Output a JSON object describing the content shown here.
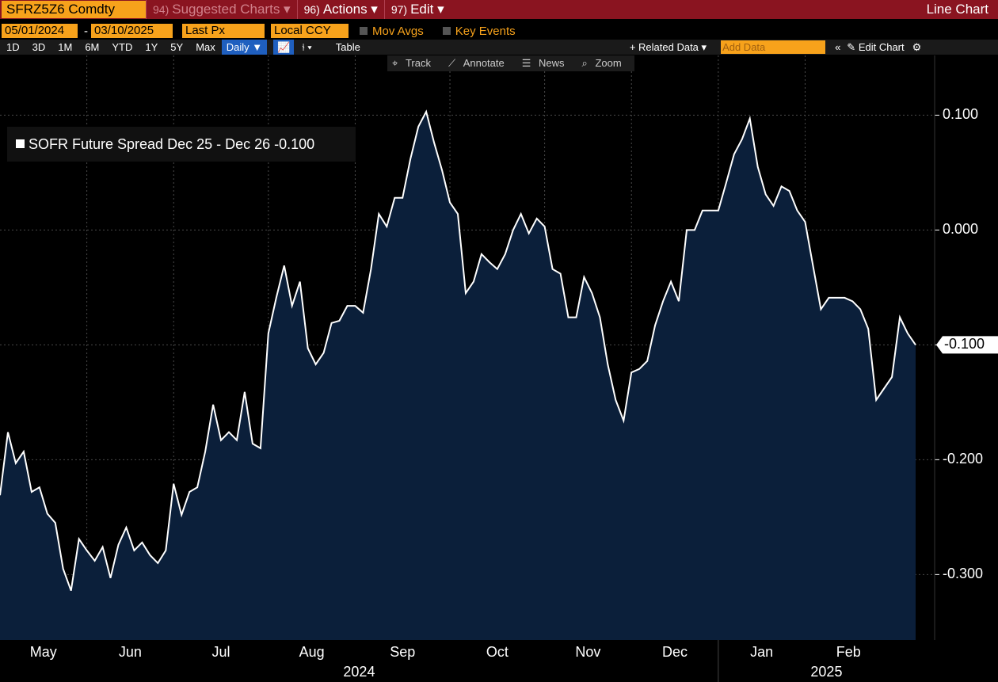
{
  "toolbar": {
    "ticker": "SFRZ5Z6 Comdty",
    "menus": [
      {
        "key": "94)",
        "label": "Suggested Charts"
      },
      {
        "key": "96)",
        "label": "Actions"
      },
      {
        "key": "97)",
        "label": "Edit"
      }
    ],
    "chart_name": "Line Chart"
  },
  "settings_bar": {
    "start": "05/01/2024",
    "separator": "-",
    "end": "03/10/2025",
    "field": "Last Px",
    "currency": "Local CCY",
    "mov_avgs": "Mov Avgs",
    "key_events": "Key Events"
  },
  "range_bar": {
    "ranges": [
      "1D",
      "3D",
      "1M",
      "6M",
      "YTD",
      "1Y",
      "5Y",
      "Max"
    ],
    "frequency": "Daily",
    "table": "Table",
    "related": "Related Data",
    "add_data": "Add Data",
    "edit_chart": "Edit Chart"
  },
  "tools": [
    "Track",
    "Annotate",
    "News",
    "Zoom"
  ],
  "chart_data": {
    "type": "area",
    "categories": [
      "May",
      null,
      null,
      null,
      null,
      null,
      null,
      null,
      null,
      null,
      null,
      "Jun",
      null,
      null,
      null,
      null,
      null,
      null,
      null,
      null,
      null,
      null,
      "Jul",
      null,
      null,
      null,
      null,
      null,
      null,
      null,
      null,
      null,
      null,
      null,
      "Aug",
      null,
      null,
      null,
      null,
      null,
      null,
      null,
      null,
      null,
      null,
      "Sep",
      null,
      null,
      null,
      null,
      null,
      null,
      null,
      null,
      null,
      null,
      null,
      "Oct",
      null,
      null,
      null,
      null,
      null,
      null,
      null,
      null,
      null,
      null,
      null,
      "Nov",
      null,
      null,
      null,
      null,
      null,
      null,
      null,
      null,
      null,
      null,
      "Dec",
      null,
      null,
      null,
      null,
      null,
      null,
      null,
      null,
      null,
      null,
      "Jan",
      null,
      null,
      null,
      null,
      null,
      null,
      null,
      null,
      null,
      null,
      "Feb",
      null,
      null,
      null,
      null,
      null,
      null,
      null,
      null,
      null,
      null,
      null,
      null,
      null,
      null
    ],
    "years": [
      "2024",
      null,
      null,
      null,
      null,
      null,
      null,
      null,
      null,
      null,
      null,
      null,
      null,
      null,
      null,
      null,
      null,
      null,
      null,
      null,
      null,
      null,
      null,
      null,
      null,
      null,
      null,
      null,
      null,
      null,
      null,
      null,
      null,
      null,
      null,
      null,
      null,
      null,
      null,
      null,
      null,
      null,
      null,
      null,
      null,
      null,
      null,
      null,
      null,
      null,
      null,
      null,
      null,
      null,
      null,
      null,
      null,
      null,
      null,
      null,
      null,
      null,
      null,
      null,
      null,
      null,
      null,
      null,
      null,
      null,
      null,
      null,
      null,
      null,
      null,
      null,
      null,
      null,
      null,
      null,
      null,
      null,
      null,
      null,
      null,
      null,
      null,
      null,
      null,
      null,
      null,
      "2025",
      null,
      null,
      null,
      null,
      null,
      null,
      null,
      null,
      null,
      null,
      null,
      null,
      null,
      null,
      null,
      null,
      null,
      null,
      null,
      null,
      null,
      null,
      null,
      null,
      null,
      null,
      null,
      null,
      null
    ],
    "series": [
      {
        "name": "SOFR Future Spread Dec 25 - Dec 26",
        "color": "#ffffff",
        "fill": "#0b1f3a",
        "values": [
          -0.231,
          -0.176,
          -0.203,
          -0.193,
          -0.228,
          -0.224,
          -0.247,
          -0.255,
          -0.295,
          -0.314,
          -0.269,
          -0.279,
          -0.288,
          -0.276,
          -0.303,
          -0.274,
          -0.259,
          -0.279,
          -0.272,
          -0.283,
          -0.29,
          -0.279,
          -0.221,
          -0.248,
          -0.228,
          -0.224,
          -0.193,
          -0.152,
          -0.183,
          -0.176,
          -0.183,
          -0.141,
          -0.186,
          -0.19,
          -0.09,
          -0.059,
          -0.031,
          -0.066,
          -0.045,
          -0.103,
          -0.117,
          -0.107,
          -0.081,
          -0.079,
          -0.066,
          -0.066,
          -0.072,
          -0.034,
          0.014,
          0.003,
          0.028,
          0.028,
          0.062,
          0.09,
          0.103,
          0.076,
          0.052,
          0.024,
          0.014,
          -0.055,
          -0.045,
          -0.021,
          -0.028,
          -0.034,
          -0.021,
          0.0,
          0.014,
          -0.003,
          0.01,
          0.003,
          -0.034,
          -0.038,
          -0.076,
          -0.076,
          -0.041,
          -0.055,
          -0.076,
          -0.117,
          -0.148,
          -0.166,
          -0.124,
          -0.121,
          -0.114,
          -0.083,
          -0.062,
          -0.045,
          -0.062,
          0.0,
          0.0,
          0.017,
          0.017,
          0.017,
          0.041,
          0.066,
          0.079,
          0.097,
          0.055,
          0.031,
          0.021,
          0.038,
          0.034,
          0.017,
          0.007,
          -0.031,
          -0.069,
          -0.059,
          -0.059,
          -0.059,
          -0.062,
          -0.069,
          -0.086,
          -0.148,
          -0.138,
          -0.128,
          -0.076,
          -0.09,
          -0.1
        ],
        "last_label": {
          "value": -0.1,
          "label": "-0.100"
        }
      }
    ],
    "ylim": [
      -0.357,
      0.152
    ],
    "yticks": [
      {
        "value": 0.1,
        "label": "0.100"
      },
      {
        "value": 0,
        "label": "0.000"
      },
      {
        "value": -0.1,
        "label": "-0.100"
      },
      {
        "value": -0.2,
        "label": "-0.200"
      },
      {
        "value": -0.3,
        "label": "-0.300"
      }
    ],
    "grid": true,
    "legend": "upper left"
  }
}
